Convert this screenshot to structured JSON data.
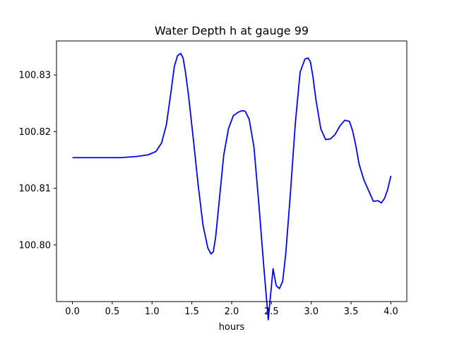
{
  "chart_data": {
    "type": "line",
    "title": "Water Depth h at gauge 99",
    "xlabel": "hours",
    "ylabel": "",
    "xlim": [
      -0.2,
      4.2
    ],
    "ylim": [
      100.79,
      100.836
    ],
    "xticks": [
      0.0,
      0.5,
      1.0,
      1.5,
      2.0,
      2.5,
      3.0,
      3.5,
      4.0
    ],
    "xtick_labels": [
      "0.0",
      "0.5",
      "1.0",
      "1.5",
      "2.0",
      "2.5",
      "3.0",
      "3.5",
      "4.0"
    ],
    "yticks": [
      100.8,
      100.81,
      100.82,
      100.83
    ],
    "ytick_labels": [
      "100.80",
      "100.81",
      "100.82",
      "100.83"
    ],
    "grid": false,
    "series": [
      {
        "color": "#0000ff",
        "x": [
          0.0,
          0.2,
          0.4,
          0.6,
          0.8,
          0.95,
          1.05,
          1.12,
          1.18,
          1.24,
          1.28,
          1.32,
          1.36,
          1.39,
          1.42,
          1.46,
          1.52,
          1.58,
          1.64,
          1.7,
          1.74,
          1.77,
          1.8,
          1.84,
          1.9,
          1.96,
          2.02,
          2.08,
          2.13,
          2.17,
          2.22,
          2.28,
          2.34,
          2.4,
          2.46,
          2.52,
          2.56,
          2.6,
          2.64,
          2.68,
          2.74,
          2.8,
          2.86,
          2.92,
          2.96,
          2.99,
          3.02,
          3.06,
          3.12,
          3.18,
          3.24,
          3.3,
          3.36,
          3.42,
          3.48,
          3.52,
          3.56,
          3.6,
          3.66,
          3.72,
          3.78,
          3.84,
          3.88,
          3.92,
          3.96,
          4.0
        ],
        "y": [
          100.8154,
          100.8154,
          100.8154,
          100.8154,
          100.8156,
          100.8159,
          100.8165,
          100.818,
          100.8212,
          100.8272,
          100.8315,
          100.8334,
          100.8338,
          100.833,
          100.8305,
          100.8262,
          100.8185,
          100.8105,
          100.8035,
          100.7995,
          100.7984,
          100.7988,
          100.8015,
          100.8072,
          100.8158,
          100.8205,
          100.8228,
          100.8234,
          100.8237,
          100.8236,
          100.8222,
          100.8173,
          100.8075,
          100.7968,
          100.7868,
          100.7958,
          100.7928,
          100.7923,
          100.7935,
          100.7985,
          100.8095,
          100.8215,
          100.8305,
          100.8328,
          100.833,
          100.8323,
          100.8298,
          100.8255,
          100.8205,
          100.8186,
          100.8187,
          100.8195,
          100.821,
          100.822,
          100.8218,
          100.8201,
          100.8175,
          100.8143,
          100.8115,
          100.8096,
          100.8077,
          100.8078,
          100.8074,
          100.8082,
          100.8098,
          100.8122
        ]
      }
    ]
  }
}
